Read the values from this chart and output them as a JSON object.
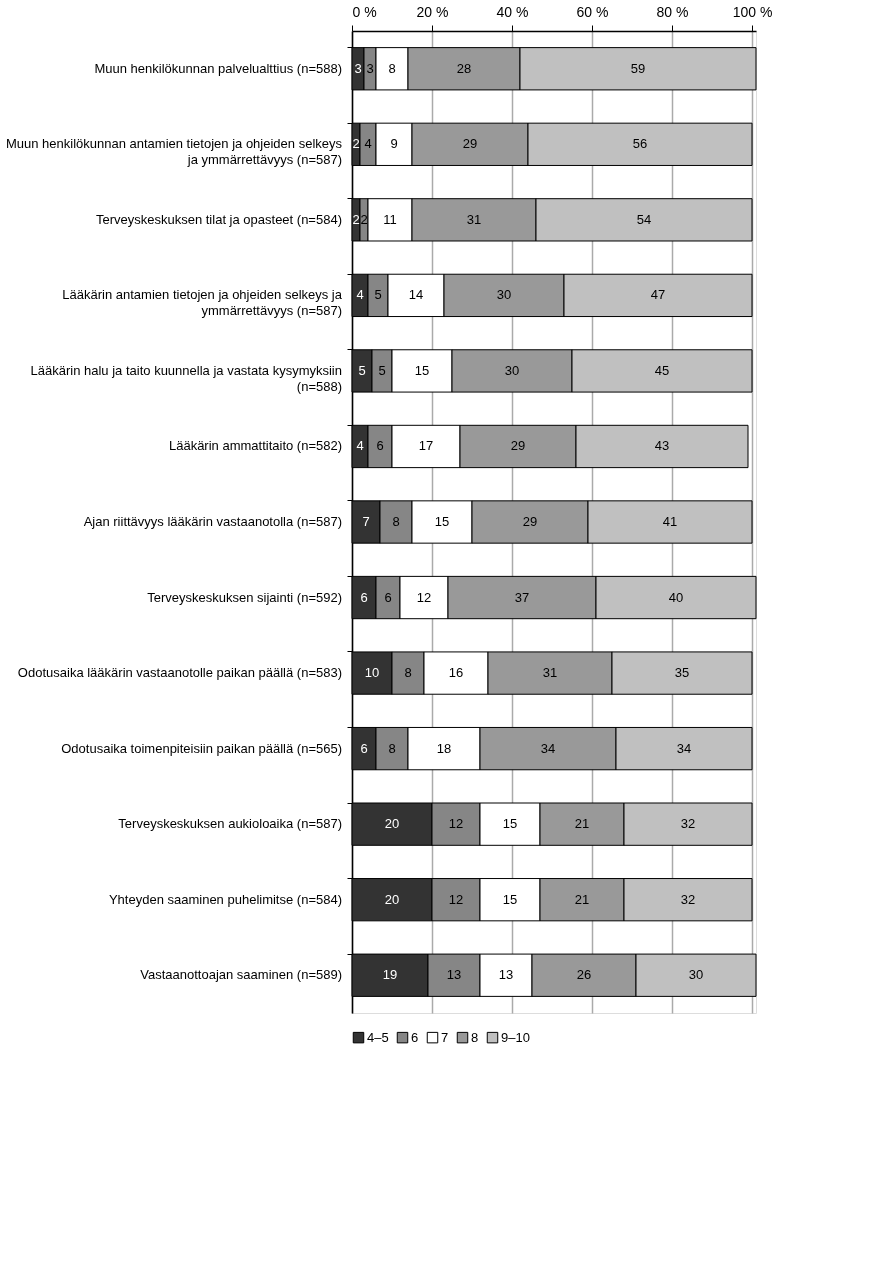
{
  "chart_data": {
    "type": "bar",
    "orientation": "horizontal",
    "stacked": true,
    "data_labels": true,
    "grid": "x",
    "legend": "bottom",
    "categories": [
      "Muun henkilökunnan palvelualttius (n=588)",
      "Muun henkilökunnan antamien tietojen ja ohjeiden selkeys ja ymmärrettävyys (n=587)",
      "Terveyskeskuksen tilat ja opasteet (n=584)",
      "Lääkärin antamien tietojen ja ohjeiden selkeys ja ymmärrettävyys (n=587)",
      "Lääkärin halu ja taito kuunnella ja vastata kysymyksiin (n=588)",
      "Lääkärin ammattitaito (n=582)",
      "Ajan riittävyys lääkärin vastaanotolla (n=587)",
      "Terveyskeskuksen sijainti (n=592)",
      "Odotusaika lääkärin vastaanotolle paikan päällä (n=583)",
      "Odotusaika toimenpiteisiin paikan päällä (n=565)",
      "Terveyskeskuksen aukioloaika (n=587)",
      "Yhteyden saaminen puhelimitse (n=584)",
      "Vastaanottoajan saaminen (n=589)"
    ],
    "xlim": [
      0,
      101
    ],
    "xticks": [
      {
        "value": 0,
        "label": "0 %"
      },
      {
        "value": 20,
        "label": "20 %"
      },
      {
        "value": 40,
        "label": "40 %"
      },
      {
        "value": 60,
        "label": "60 %"
      },
      {
        "value": 80,
        "label": "80 %"
      },
      {
        "value": 100,
        "label": "100 %"
      }
    ],
    "series": [
      {
        "name": "4–5",
        "color": "#333333",
        "values": [
          3,
          2,
          2,
          4,
          5,
          4,
          7,
          6,
          10,
          6,
          20,
          20,
          19
        ]
      },
      {
        "name": "6",
        "color": "#868686",
        "values": [
          3,
          4,
          2,
          5,
          5,
          6,
          8,
          6,
          8,
          8,
          12,
          12,
          13
        ]
      },
      {
        "name": "7",
        "color": "#ffffff",
        "values": [
          8,
          9,
          11,
          14,
          15,
          17,
          15,
          12,
          16,
          18,
          15,
          15,
          13
        ]
      },
      {
        "name": "8",
        "color": "#999999",
        "values": [
          28,
          29,
          31,
          30,
          30,
          29,
          29,
          37,
          31,
          34,
          21,
          21,
          26
        ]
      },
      {
        "name": "9–10",
        "color": "#c0c0c0",
        "values": [
          59,
          56,
          54,
          47,
          45,
          43,
          41,
          40,
          35,
          34,
          32,
          32,
          30
        ]
      }
    ]
  }
}
